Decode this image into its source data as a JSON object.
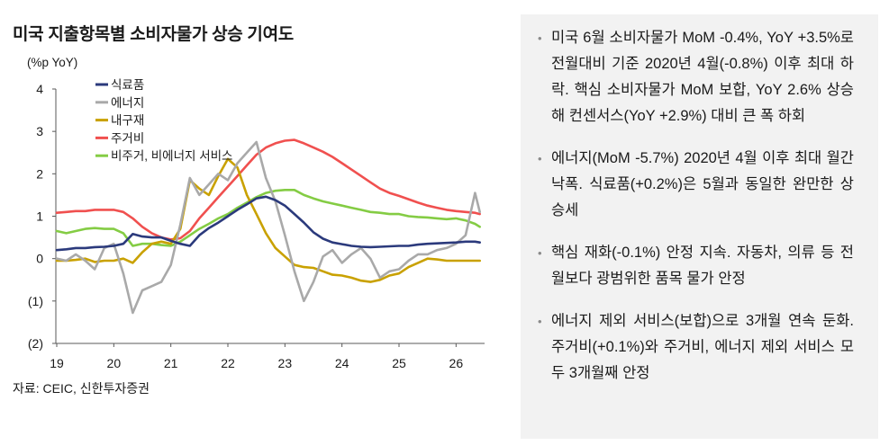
{
  "chart_data": {
    "type": "line",
    "title": "미국 지출항목별 소비자물가 상승 기여도",
    "ylabel": "(%p YoY)",
    "ylim": [
      -2,
      4
    ],
    "xlim": [
      "2019-01",
      "2026-07"
    ],
    "grid": false,
    "legend": "top-left",
    "y_ticks": [
      {
        "value": 4,
        "label": "4"
      },
      {
        "value": 3,
        "label": "3"
      },
      {
        "value": 2,
        "label": "2"
      },
      {
        "value": 1,
        "label": "1"
      },
      {
        "value": 0,
        "label": "0"
      },
      {
        "value": -1,
        "label": "(1)"
      },
      {
        "value": -2,
        "label": "(2)"
      }
    ],
    "x_ticks": [
      {
        "value": "2019-01",
        "label": "19"
      },
      {
        "value": "2020-01",
        "label": "20"
      },
      {
        "value": "2021-01",
        "label": "21"
      },
      {
        "value": "2022-01",
        "label": "22"
      },
      {
        "value": "2023-01",
        "label": "23"
      },
      {
        "value": "2024-01",
        "label": "24"
      },
      {
        "value": "2025-01",
        "label": "25"
      },
      {
        "value": "2026-01",
        "label": "26"
      }
    ],
    "x": [
      "2019-01",
      "2019-03",
      "2019-05",
      "2019-07",
      "2019-09",
      "2019-11",
      "2020-01",
      "2020-03",
      "2020-05",
      "2020-07",
      "2020-09",
      "2020-11",
      "2021-01",
      "2021-03",
      "2021-05",
      "2021-07",
      "2021-09",
      "2021-11",
      "2022-01",
      "2022-03",
      "2022-05",
      "2022-07",
      "2022-09",
      "2022-11",
      "2023-01",
      "2023-03",
      "2023-05",
      "2023-07",
      "2023-09",
      "2023-11",
      "2024-01",
      "2024-03",
      "2024-05",
      "2024-07",
      "2024-09",
      "2024-11",
      "2025-01",
      "2025-03",
      "2025-05",
      "2025-07",
      "2025-09",
      "2025-11",
      "2026-01",
      "2026-03",
      "2026-05",
      "2026-06"
    ],
    "series": [
      {
        "name": "식료품",
        "color": "#2b3a7c",
        "values": [
          0.2,
          0.22,
          0.25,
          0.25,
          0.27,
          0.28,
          0.3,
          0.35,
          0.58,
          0.52,
          0.5,
          0.5,
          0.42,
          0.35,
          0.3,
          0.55,
          0.72,
          0.85,
          1.0,
          1.15,
          1.28,
          1.42,
          1.46,
          1.38,
          1.25,
          1.05,
          0.85,
          0.62,
          0.47,
          0.38,
          0.34,
          0.3,
          0.28,
          0.27,
          0.28,
          0.29,
          0.3,
          0.3,
          0.33,
          0.35,
          0.36,
          0.37,
          0.38,
          0.4,
          0.4,
          0.38
        ]
      },
      {
        "name": "에너지",
        "color": "#a9a9a9",
        "values": [
          0.0,
          -0.05,
          0.1,
          -0.05,
          -0.25,
          0.25,
          0.35,
          -0.35,
          -1.28,
          -0.75,
          -0.65,
          -0.55,
          -0.15,
          0.8,
          1.9,
          1.5,
          1.75,
          2.0,
          1.85,
          2.25,
          2.5,
          2.75,
          1.9,
          1.35,
          0.55,
          -0.3,
          -1.0,
          -0.55,
          0.05,
          0.2,
          -0.1,
          0.1,
          0.25,
          0.0,
          -0.45,
          -0.3,
          -0.25,
          -0.05,
          0.1,
          0.1,
          0.2,
          0.25,
          0.35,
          0.55,
          1.55,
          1.1
        ]
      },
      {
        "name": "내구재",
        "color": "#c9a100",
        "values": [
          -0.05,
          -0.05,
          -0.03,
          0.0,
          -0.08,
          -0.05,
          -0.05,
          0.0,
          -0.1,
          0.15,
          0.35,
          0.4,
          0.35,
          0.7,
          1.85,
          1.65,
          1.5,
          1.95,
          2.35,
          2.15,
          1.5,
          1.05,
          0.6,
          0.25,
          0.05,
          -0.15,
          -0.2,
          -0.22,
          -0.3,
          -0.38,
          -0.4,
          -0.45,
          -0.52,
          -0.55,
          -0.5,
          -0.4,
          -0.35,
          -0.2,
          -0.1,
          0.0,
          -0.02,
          -0.05,
          -0.05,
          -0.05,
          -0.05,
          -0.05
        ]
      },
      {
        "name": "주거비",
        "color": "#f0504f",
        "values": [
          1.08,
          1.1,
          1.12,
          1.12,
          1.15,
          1.15,
          1.15,
          1.1,
          0.95,
          0.75,
          0.6,
          0.5,
          0.45,
          0.48,
          0.65,
          0.95,
          1.2,
          1.45,
          1.7,
          1.95,
          2.2,
          2.45,
          2.62,
          2.72,
          2.78,
          2.8,
          2.72,
          2.62,
          2.52,
          2.4,
          2.25,
          2.1,
          1.95,
          1.8,
          1.65,
          1.55,
          1.48,
          1.4,
          1.32,
          1.25,
          1.2,
          1.15,
          1.12,
          1.1,
          1.08,
          1.05
        ]
      },
      {
        "name": "비주거, 비에너지 서비스",
        "color": "#84cc44",
        "values": [
          0.65,
          0.6,
          0.65,
          0.7,
          0.72,
          0.7,
          0.7,
          0.6,
          0.3,
          0.35,
          0.35,
          0.32,
          0.3,
          0.4,
          0.55,
          0.7,
          0.82,
          0.95,
          1.05,
          1.2,
          1.32,
          1.45,
          1.55,
          1.6,
          1.62,
          1.62,
          1.5,
          1.42,
          1.35,
          1.3,
          1.25,
          1.2,
          1.15,
          1.1,
          1.08,
          1.05,
          1.05,
          1.0,
          0.98,
          0.97,
          0.95,
          0.93,
          0.95,
          0.9,
          0.82,
          0.75
        ]
      }
    ]
  },
  "source_note": "자료: CEIC, 신한투자증권",
  "summary": {
    "bullets": [
      "미국 6월 소비자물가 MoM -0.4%, YoY +3.5%로 전월대비 기준 2020년 4월(-0.8%) 이후 최대 하락. 핵심 소비자물가 MoM 보합, YoY 2.6% 상승해 컨센서스(YoY +2.9%) 대비 큰 폭 하회",
      "에너지(MoM -5.7%) 2020년 4월 이후 최대 월간 낙폭. 식료품(+0.2%)은 5월과 동일한 완만한 상승세",
      "핵심 재화(-0.1%) 안정 지속. 자동차, 의류 등 전월보다 광범위한 품목 물가 안정",
      "에너지 제외 서비스(보합)으로 3개월 연속 둔화. 주거비(+0.1%)와 주거비, 에너지 제외 서비스 모두 3개월째 안정"
    ]
  }
}
